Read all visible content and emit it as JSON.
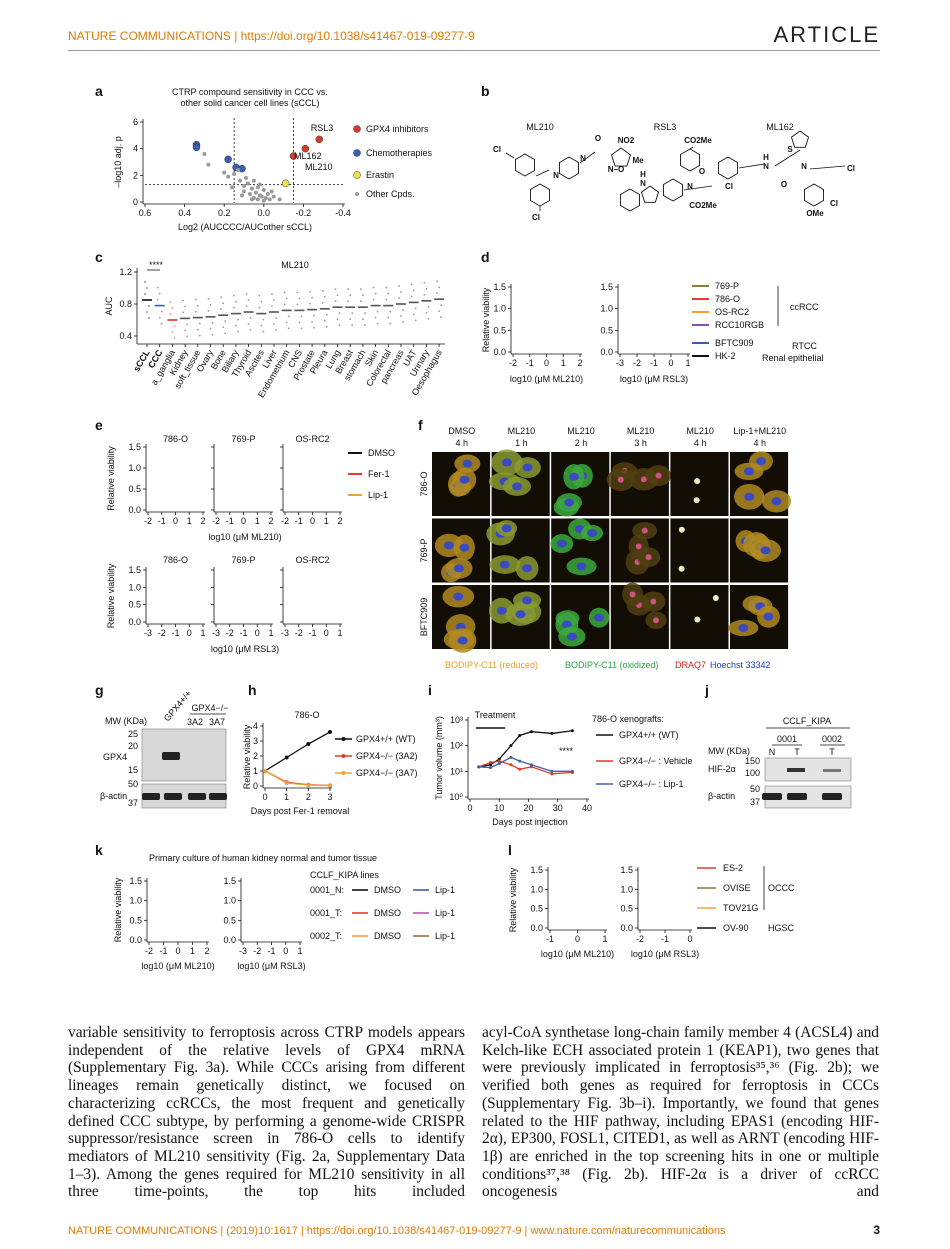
{
  "header": {
    "journal": "NATURE COMMUNICATIONS | https://doi.org/10.1038/s41467-019-09277-9",
    "section": "ARTICLE"
  },
  "figure": {
    "a": {
      "label": "a",
      "title": [
        "CTRP compound sensitivity in CCC vs.",
        "other solid cancer cell lines (sCCL)"
      ],
      "ylabel": "–log10 adj. p",
      "xlabel": "Log2 (AUCCCC/AUCother sCCL)",
      "xlim": [
        0.6,
        -0.4
      ],
      "ylim": [
        0,
        6
      ],
      "xticks": [
        0.6,
        0.4,
        0.2,
        {
          "value": 0,
          "label": "0.0"
        },
        -0.2,
        -0.4
      ],
      "yticks": [
        0,
        2,
        4,
        6
      ],
      "thresholds_x": [
        0.15,
        -0.15
      ],
      "threshold_y": 1.3,
      "annotations": [
        "RSL3",
        "ML162",
        "ML210"
      ],
      "series": [
        {
          "name": "GPX4 inhibitors",
          "color": "#d63a2a",
          "x": [
            -0.21,
            -0.28,
            -0.15
          ],
          "values": [
            4.0,
            4.7,
            3.45
          ]
        },
        {
          "name": "Chemotherapies",
          "color": "#3a5fb0",
          "x": [
            0.34,
            0.34,
            0.18,
            0.14,
            0.11
          ],
          "values": [
            4.3,
            4.1,
            3.2,
            2.6,
            2.5
          ]
        },
        {
          "name": "Erastin",
          "color": "#f2e04a",
          "x": [
            -0.11
          ],
          "values": [
            1.4
          ]
        },
        {
          "name": "Other Cpds.",
          "color": "#9a9a9a",
          "x": [
            0.3,
            0.28,
            0.2,
            0.18,
            0.15,
            0.12,
            0.1,
            0.1,
            0.08,
            0.07,
            0.06,
            0.05,
            0.05,
            0.04,
            0.03,
            0.03,
            0.02,
            0.01,
            0,
            0,
            -0.01,
            -0.02,
            -0.03,
            -0.05,
            -0.08,
            0.09,
            0.11,
            0.06,
            0.02,
            -0.04,
            0.13,
            0.16
          ],
          "values": [
            3.6,
            2.8,
            2.2,
            1.9,
            2.1,
            1.6,
            1.2,
            0.8,
            1.4,
            0.6,
            1.0,
            0.3,
            1.6,
            0.7,
            0.2,
            1.1,
            0.5,
            0.4,
            0.1,
            0.9,
            0.3,
            0.6,
            0.2,
            0.4,
            0.2,
            1.8,
            0.5,
            0.2,
            1.3,
            0.8,
            2.4,
            1.1
          ]
        }
      ]
    },
    "b": {
      "label": "b",
      "compounds": [
        {
          "name": "ML210",
          "atoms": [
            "Cl",
            "N",
            "N",
            "O",
            "NO2",
            "Me",
            "N–O",
            "Cl"
          ]
        },
        {
          "name": "RSL3",
          "atoms": [
            "CO2Me",
            "H",
            "N",
            "N",
            "O",
            "Cl",
            "CO2Me"
          ]
        },
        {
          "name": "ML162",
          "atoms": [
            "S",
            "H",
            "N",
            "N",
            "O",
            "Cl",
            "Cl",
            "OMe"
          ]
        }
      ]
    },
    "c": {
      "label": "c",
      "title": "ML210",
      "significance": "****",
      "ylabel": "AUC",
      "ylim": [
        0.3,
        1.25
      ],
      "yticks": [
        0.4,
        0.8,
        1.2
      ],
      "categories": [
        "sCCL",
        "CCC",
        "a_ganglia",
        "Kidney",
        "soft_tissue",
        "Ovary",
        "Bone",
        "Biliary",
        "Thyroid",
        "Ascites",
        "Liver",
        "Endometrium",
        "CNS",
        "Prostate",
        "Pleura",
        "Lung",
        "Breast",
        "stomach",
        "Skin",
        "Colorectal",
        "pancreas",
        "UAT",
        "Urinary",
        "Oesophagus"
      ],
      "values": [
        0.85,
        0.78,
        0.6,
        0.62,
        0.63,
        0.64,
        0.66,
        0.68,
        0.7,
        0.68,
        0.7,
        0.72,
        0.72,
        0.73,
        0.74,
        0.76,
        0.76,
        0.76,
        0.78,
        0.78,
        0.8,
        0.82,
        0.84,
        0.86
      ],
      "colors": [
        "#111111",
        "#3a5fb0",
        "#d63a2a",
        "#555555",
        "#555555",
        "#555555",
        "#555555",
        "#555555",
        "#555555",
        "#555555",
        "#555555",
        "#555555",
        "#555555",
        "#555555",
        "#555555",
        "#555555",
        "#555555",
        "#555555",
        "#555555",
        "#555555",
        "#555555",
        "#555555",
        "#555555",
        "#555555"
      ]
    },
    "d": {
      "label": "d",
      "ylabel": "Relative viability",
      "ylim": [
        0,
        1.5
      ],
      "yticks": [
        {
          "value": 0,
          "label": "0.0"
        },
        0.5,
        {
          "value": 1,
          "label": "1.0"
        },
        1.5
      ],
      "plots": [
        {
          "xlabel": "log10 (μM ML210)",
          "xlim": [
            -2,
            2
          ],
          "xticks": [
            -2,
            -1,
            0,
            1,
            2
          ]
        },
        {
          "xlabel": "log10 (μM RSL3)",
          "xlim": [
            -3,
            1
          ],
          "xticks": [
            -3,
            -2,
            -1,
            0,
            1
          ]
        }
      ],
      "series": [
        {
          "name": "769-P",
          "color": "#8c7a3a"
        },
        {
          "name": "786-O",
          "color": "#e0402a"
        },
        {
          "name": "OS-RC2",
          "color": "#f4a030"
        },
        {
          "name": "RCC10RGB",
          "color": "#8a4fb5"
        },
        {
          "name": "BFTC909",
          "color": "#3a5fb0"
        },
        {
          "name": "HK-2",
          "color": "#111111"
        }
      ],
      "groups": [
        "ccRCC",
        "RTCC",
        "Renal epithelial"
      ]
    },
    "e": {
      "label": "e",
      "ylabel": "Relative viability",
      "ylim": [
        0,
        1.5
      ],
      "yticks": [
        {
          "value": 0,
          "label": "0.0"
        },
        0.5,
        {
          "value": 1,
          "label": "1.0"
        },
        1.5
      ],
      "rows": [
        {
          "xlabel": "log10 (μM ML210)",
          "xlim": [
            -2,
            2
          ],
          "xticks": [
            -2,
            -1,
            0,
            1,
            2
          ],
          "titles": [
            "786-O",
            "769-P",
            "OS-RC2"
          ]
        },
        {
          "xlabel": "log10 (μM RSL3)",
          "xlim": [
            -3,
            1
          ],
          "xticks": [
            -3,
            -2,
            -1,
            0,
            1
          ],
          "titles": [
            "786-O",
            "769-P",
            "OS-RC2"
          ]
        }
      ],
      "series": [
        {
          "name": "DMSO",
          "color": "#111111"
        },
        {
          "name": "Fer-1",
          "color": "#e03c28"
        },
        {
          "name": "Lip-1",
          "color": "#f0a040"
        }
      ]
    },
    "f": {
      "label": "f",
      "columns": [
        [
          "DMSO",
          "4 h"
        ],
        [
          "ML210",
          "1 h"
        ],
        [
          "ML210",
          "2 h"
        ],
        [
          "ML210",
          "3 h"
        ],
        [
          "ML210",
          "4 h"
        ],
        [
          "Lip-1+ML210",
          "4 h"
        ]
      ],
      "rows": [
        "786-O",
        "769-P",
        "BFTC909"
      ],
      "stains": [
        {
          "name": "BODIPY-C11 (reduced)",
          "color": "#e8a020"
        },
        {
          "name": "BODIPY-C11 (oxidized)",
          "color": "#2aa040"
        },
        {
          "name": "DRAQ7",
          "color": "#d02020"
        },
        {
          "name": "Hoechst 33342",
          "color": "#2040c0"
        }
      ]
    },
    "g": {
      "label": "g",
      "mw_label": "MW (KDa)",
      "lanes": [
        "GPX4+/+",
        "GPX4−/−"
      ],
      "clones": [
        "3A2",
        "3A7"
      ],
      "markers": [
        "25",
        "20",
        "15",
        "50",
        "37"
      ],
      "proteins": [
        "GPX4",
        "β-actin"
      ]
    },
    "h": {
      "label": "h",
      "title": "786-O",
      "ylabel": "Relative viability",
      "xlabel": "Days post Fer-1 removal",
      "x": [
        0,
        1,
        2,
        3
      ],
      "xlim": [
        0,
        3
      ],
      "ylim": [
        0,
        4
      ],
      "xticks": [
        0,
        1,
        2,
        3
      ],
      "yticks": [
        0,
        1,
        2,
        3,
        4
      ],
      "series": [
        {
          "name": "GPX4+/+ (WT)",
          "color": "#111111",
          "values": [
            1,
            1.9,
            2.8,
            3.6
          ]
        },
        {
          "name": "GPX4−/− (3A2)",
          "color": "#e03c28",
          "values": [
            1,
            0.25,
            0.08,
            0.04
          ]
        },
        {
          "name": "GPX4−/− (3A7)",
          "color": "#f0a040",
          "values": [
            1,
            0.2,
            0.06,
            0.03
          ]
        }
      ]
    },
    "i": {
      "label": "i",
      "ylabel": "Tumor volume (mm³)",
      "xlabel": "Days post injection",
      "treatment": "Treatment",
      "treatment_days": [
        2,
        12
      ],
      "significance": "****",
      "legend_title": "786-O xenografts:",
      "ylim": [
        1,
        1000
      ],
      "yticks": [
        {
          "value": 1,
          "label": "10⁰"
        },
        {
          "value": 10,
          "label": "10¹"
        },
        {
          "value": 100,
          "label": "10²"
        },
        {
          "value": 1000,
          "label": "10³"
        }
      ],
      "xlim": [
        0,
        40
      ],
      "xticks": [
        0,
        10,
        20,
        30,
        40
      ],
      "x": [
        3,
        7,
        10,
        14,
        17,
        21,
        28,
        35
      ],
      "series": [
        {
          "name": "GPX4+/+ (WT)",
          "color": "#111111",
          "values": [
            15,
            18,
            30,
            100,
            250,
            350,
            300,
            380
          ]
        },
        {
          "name": "GPX4−/− : Vehicle",
          "color": "#e03c28",
          "values": [
            15,
            22,
            25,
            18,
            12,
            15,
            8,
            9
          ]
        },
        {
          "name": "GPX4−/− : Lip-1",
          "color": "#3a5fb0",
          "values": [
            15,
            14,
            20,
            35,
            25,
            18,
            10,
            10
          ]
        }
      ]
    },
    "j": {
      "label": "j",
      "cohort": "CCLF_KIPA",
      "patients": [
        "0001",
        "0002"
      ],
      "lanes": [
        "N",
        "T",
        "T"
      ],
      "mw_label": "MW (KDa)",
      "markers": [
        "150",
        "100",
        "50",
        "37"
      ],
      "proteins": [
        "HIF-2α",
        "β-actin"
      ]
    },
    "k": {
      "label": "k",
      "title": "Primary culture of human kidney normal and tumor tissue",
      "ylabel": "Relative viability",
      "ylim": [
        0,
        1.5
      ],
      "yticks": [
        {
          "value": 0,
          "label": "0.0"
        },
        0.5,
        {
          "value": 1,
          "label": "1.0"
        },
        1.5
      ],
      "plots": [
        {
          "xlabel": "log10 (μM ML210)",
          "xlim": [
            -2,
            2
          ],
          "xticks": [
            -2,
            -1,
            0,
            1,
            2
          ]
        },
        {
          "xlabel": "log10 (μM RSL3)",
          "xlim": [
            -3,
            1
          ],
          "xticks": [
            -3,
            -2,
            -1,
            0,
            1
          ]
        }
      ],
      "legend_title": "CCLF_KIPA lines",
      "lines": [
        {
          "name": "0001_N:",
          "series": [
            {
              "name": "DMSO",
              "color": "#111111"
            },
            {
              "name": "Lip-1",
              "color": "#3a5fb0"
            }
          ]
        },
        {
          "name": "0001_T:",
          "series": [
            {
              "name": "DMSO",
              "color": "#e03c28"
            },
            {
              "name": "Lip-1",
              "color": "#c050c0"
            }
          ]
        },
        {
          "name": "0002_T:",
          "series": [
            {
              "name": "DMSO",
              "color": "#f0a040"
            },
            {
              "name": "Lip-1",
              "color": "#9a6a3a"
            }
          ]
        }
      ]
    },
    "l": {
      "label": "l",
      "ylabel": "Relative viability",
      "ylim": [
        0,
        1.5
      ],
      "yticks": [
        {
          "value": 0,
          "label": "0.0"
        },
        0.5,
        {
          "value": 1,
          "label": "1.0"
        },
        1.5
      ],
      "plots": [
        {
          "xlabel": "log10 (μM ML210)",
          "xlim": [
            -1,
            1
          ],
          "xticks": [
            -1,
            0,
            1
          ]
        },
        {
          "xlabel": "log10 (μM RSL3)",
          "xlim": [
            -2,
            0
          ],
          "xticks": [
            -2,
            -1,
            0
          ]
        }
      ],
      "series": [
        {
          "name": "ES-2",
          "color": "#e03c28"
        },
        {
          "name": "OVISE",
          "color": "#8c7a3a"
        },
        {
          "name": "TOV21G",
          "color": "#f0a040"
        },
        {
          "name": "OV-90",
          "color": "#111111"
        }
      ],
      "groups": [
        "OCCC",
        "HGSC"
      ]
    }
  },
  "body": {
    "left": "variable sensitivity to ferroptosis across CTRP models appears independent of the relative levels of GPX4 mRNA (Supplementary Fig. 3a). While CCCs arising from different lineages remain genetically distinct, we focused on characterizing ccRCCs, the most frequent and genetically defined CCC subtype, by performing a genome-wide CRISPR suppressor/resistance screen in 786-O cells to identify mediators of ML210 sensitivity (Fig. 2a, Supplementary Data 1–3). Among the genes required for ML210 sensitivity in all three time-points, the top hits included",
    "right": "acyl-CoA synthetase long-chain family member 4 (ACSL4) and Kelch-like ECH associated protein 1 (KEAP1), two genes that were previously implicated in ferroptosis³⁵,³⁶ (Fig. 2b); we verified both genes as required for ferroptosis in CCCs (Supplementary Fig. 3b–i). Importantly, we found that genes related to the HIF pathway, including EPAS1 (encoding HIF-2α), EP300, FOSL1, CITED1, as well as ARNT (encoding HIF-1β) are enriched in the top screening hits in one or multiple conditions³⁷,³⁸ (Fig. 2b). HIF-2α is a driver of ccRCC oncogenesis and"
  },
  "footer": {
    "citation": "NATURE COMMUNICATIONS | (2019)10:1617 | https://doi.org/10.1038/s41467-019-09277-9 | www.nature.com/naturecommunications",
    "page": "3"
  }
}
